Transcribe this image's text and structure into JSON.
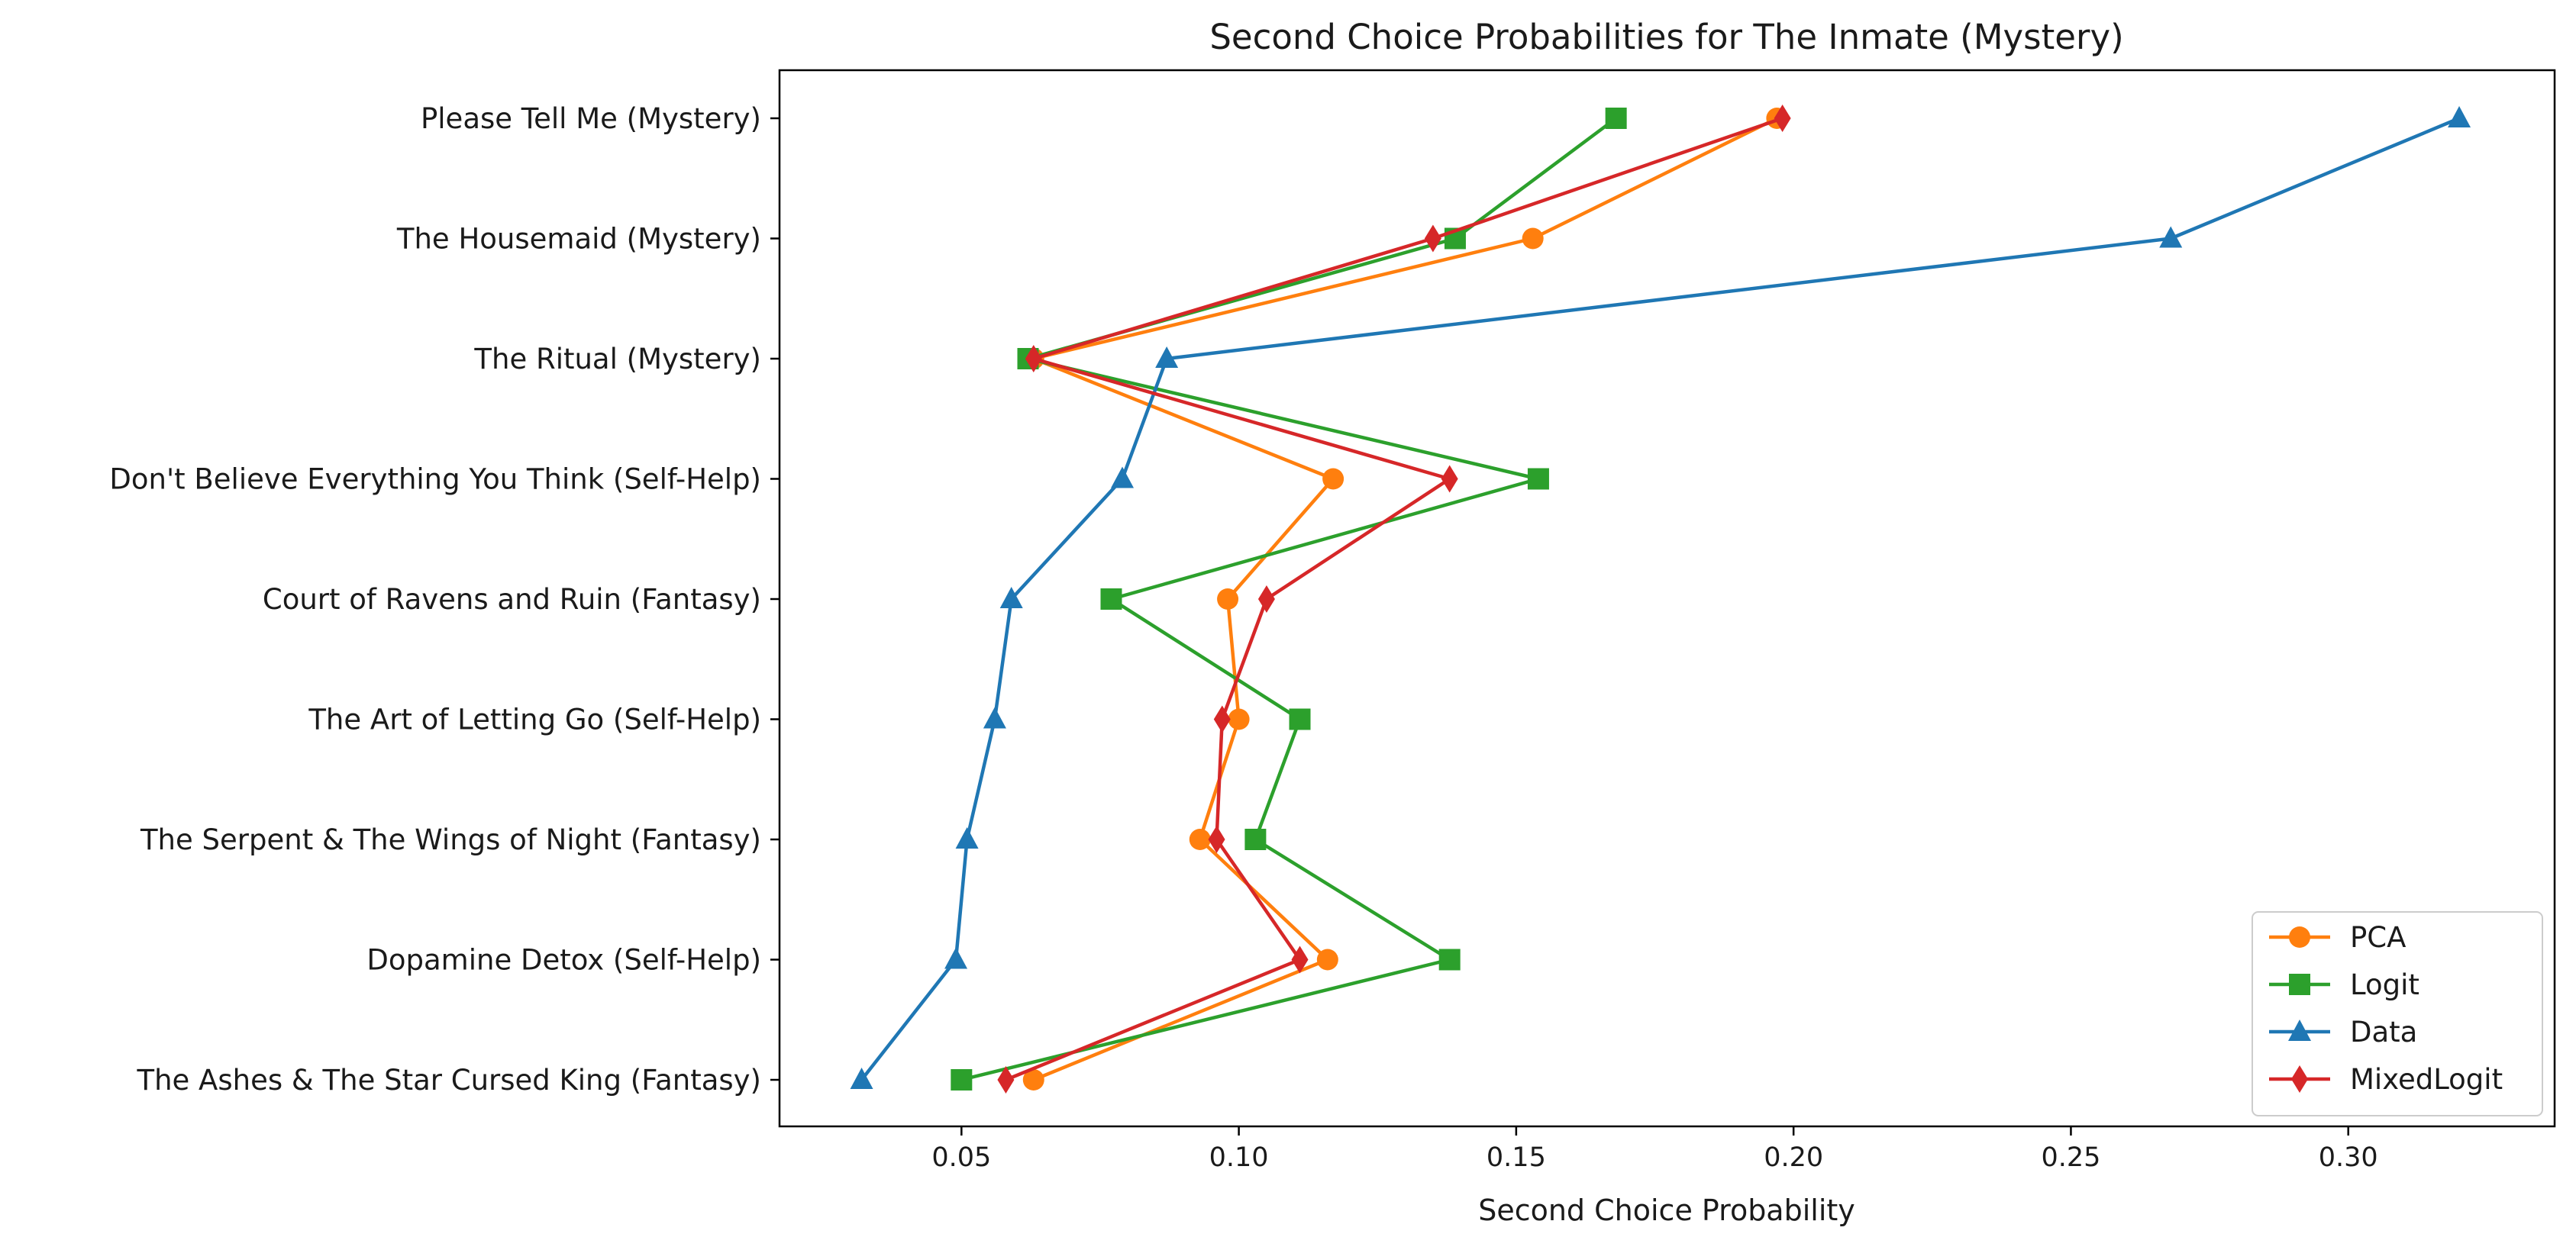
{
  "chart_data": {
    "type": "line",
    "title": "Second Choice Probabilities for The Inmate (Mystery)",
    "xlabel": "Second Choice Probability",
    "ylabel": "",
    "xlim": [
      0.0172,
      0.3372
    ],
    "x_ticks": [
      0.05,
      0.1,
      0.15,
      0.2,
      0.25,
      0.3
    ],
    "x_tick_labels": [
      "0.05",
      "0.10",
      "0.15",
      "0.20",
      "0.25",
      "0.30"
    ],
    "categories": [
      "Please Tell Me (Mystery)",
      "The Housemaid (Mystery)",
      "The Ritual (Mystery)",
      "Don't Believe Everything You Think (Self-Help)",
      "Court of Ravens and Ruin (Fantasy)",
      "The Art of Letting Go (Self-Help)",
      "The Serpent & The Wings of Night (Fantasy)",
      "Dopamine Detox (Self-Help)",
      "The Ashes & The Star Cursed King (Fantasy)"
    ],
    "grid": false,
    "legend_position": "lower-right",
    "series": [
      {
        "name": "PCA",
        "color": "#ff7f0e",
        "marker": "circle",
        "values": [
          0.197,
          0.153,
          0.063,
          0.117,
          0.098,
          0.1,
          0.093,
          0.116,
          0.063
        ]
      },
      {
        "name": "Logit",
        "color": "#2ca02c",
        "marker": "square",
        "values": [
          0.168,
          0.139,
          0.062,
          0.154,
          0.077,
          0.111,
          0.103,
          0.138,
          0.05
        ]
      },
      {
        "name": "Data",
        "color": "#1f77b4",
        "marker": "triangle",
        "values": [
          0.32,
          0.268,
          0.087,
          0.079,
          0.059,
          0.056,
          0.051,
          0.049,
          0.032
        ]
      },
      {
        "name": "MixedLogit",
        "color": "#d62728",
        "marker": "diamond",
        "values": [
          0.198,
          0.135,
          0.063,
          0.138,
          0.105,
          0.097,
          0.096,
          0.111,
          0.058
        ]
      }
    ]
  }
}
